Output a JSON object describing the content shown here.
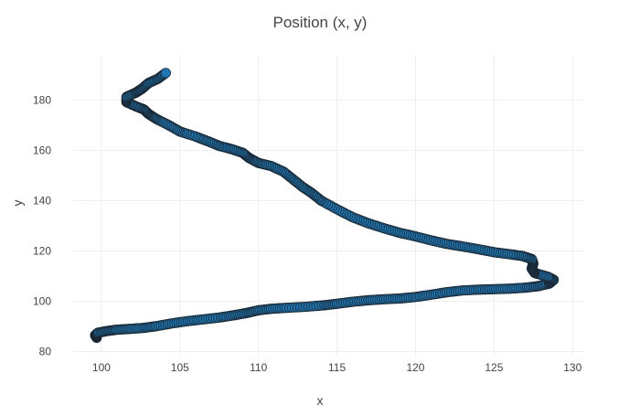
{
  "chart_data": {
    "type": "scatter",
    "title": "Position (x, y)",
    "xlabel": "x",
    "ylabel": "y",
    "xlim": [
      98.2,
      130.8
    ],
    "ylim": [
      78,
      198
    ],
    "x_ticks": [
      100,
      105,
      110,
      115,
      120,
      125,
      130
    ],
    "y_ticks": [
      80,
      100,
      120,
      140,
      160,
      180
    ],
    "grid": true,
    "marker_color": "#1f77b4",
    "marker_edge_color": "#1a2733",
    "series": [
      {
        "points": [
          [
            99.7,
            85.5
          ],
          [
            99.6,
            86.5
          ],
          [
            99.8,
            87.5
          ],
          [
            100.4,
            88.2
          ],
          [
            101.0,
            88.7
          ],
          [
            101.8,
            89.0
          ],
          [
            102.7,
            89.4
          ],
          [
            103.5,
            90.1
          ],
          [
            104.5,
            91.2
          ],
          [
            105.5,
            92.1
          ],
          [
            106.5,
            92.8
          ],
          [
            107.6,
            93.6
          ],
          [
            108.5,
            94.5
          ],
          [
            109.3,
            95.4
          ],
          [
            110.0,
            96.4
          ],
          [
            110.8,
            97.0
          ],
          [
            111.8,
            97.4
          ],
          [
            113.0,
            97.8
          ],
          [
            114.2,
            98.4
          ],
          [
            115.0,
            99.0
          ],
          [
            116.0,
            99.8
          ],
          [
            117.0,
            100.4
          ],
          [
            118.0,
            100.8
          ],
          [
            119.0,
            101.1
          ],
          [
            120.0,
            101.7
          ],
          [
            121.0,
            102.6
          ],
          [
            122.0,
            103.6
          ],
          [
            123.0,
            104.3
          ],
          [
            124.0,
            104.6
          ],
          [
            125.0,
            104.8
          ],
          [
            126.0,
            105.0
          ],
          [
            127.0,
            105.4
          ],
          [
            127.8,
            106.0
          ],
          [
            128.5,
            107.0
          ],
          [
            128.8,
            108.5
          ],
          [
            128.4,
            109.8
          ],
          [
            127.6,
            111.2
          ],
          [
            127.4,
            113.0
          ],
          [
            127.5,
            115.0
          ],
          [
            127.4,
            116.8
          ],
          [
            126.8,
            118.0
          ],
          [
            126.0,
            118.7
          ],
          [
            125.0,
            119.5
          ],
          [
            124.0,
            120.7
          ],
          [
            123.0,
            121.8
          ],
          [
            122.0,
            122.8
          ],
          [
            121.0,
            124.2
          ],
          [
            120.0,
            125.8
          ],
          [
            119.0,
            127.2
          ],
          [
            118.0,
            129.0
          ],
          [
            117.0,
            131.0
          ],
          [
            116.0,
            133.4
          ],
          [
            115.0,
            136.6
          ],
          [
            114.0,
            140.0
          ],
          [
            113.4,
            143.0
          ],
          [
            112.8,
            145.5
          ],
          [
            112.2,
            148.5
          ],
          [
            111.6,
            151.5
          ],
          [
            110.8,
            153.8
          ],
          [
            110.0,
            155.0
          ],
          [
            109.4,
            157.0
          ],
          [
            109.0,
            159.0
          ],
          [
            108.3,
            160.5
          ],
          [
            107.5,
            161.8
          ],
          [
            106.8,
            163.6
          ],
          [
            106.0,
            165.5
          ],
          [
            105.0,
            167.5
          ],
          [
            104.3,
            170.0
          ],
          [
            103.5,
            172.5
          ],
          [
            103.0,
            174.5
          ],
          [
            102.7,
            176.3
          ],
          [
            102.2,
            177.5
          ],
          [
            101.6,
            179.2
          ],
          [
            101.6,
            181.3
          ],
          [
            102.2,
            183.0
          ],
          [
            102.6,
            184.6
          ],
          [
            103.0,
            186.8
          ],
          [
            103.6,
            188.5
          ],
          [
            104.1,
            190.8
          ]
        ]
      }
    ]
  }
}
